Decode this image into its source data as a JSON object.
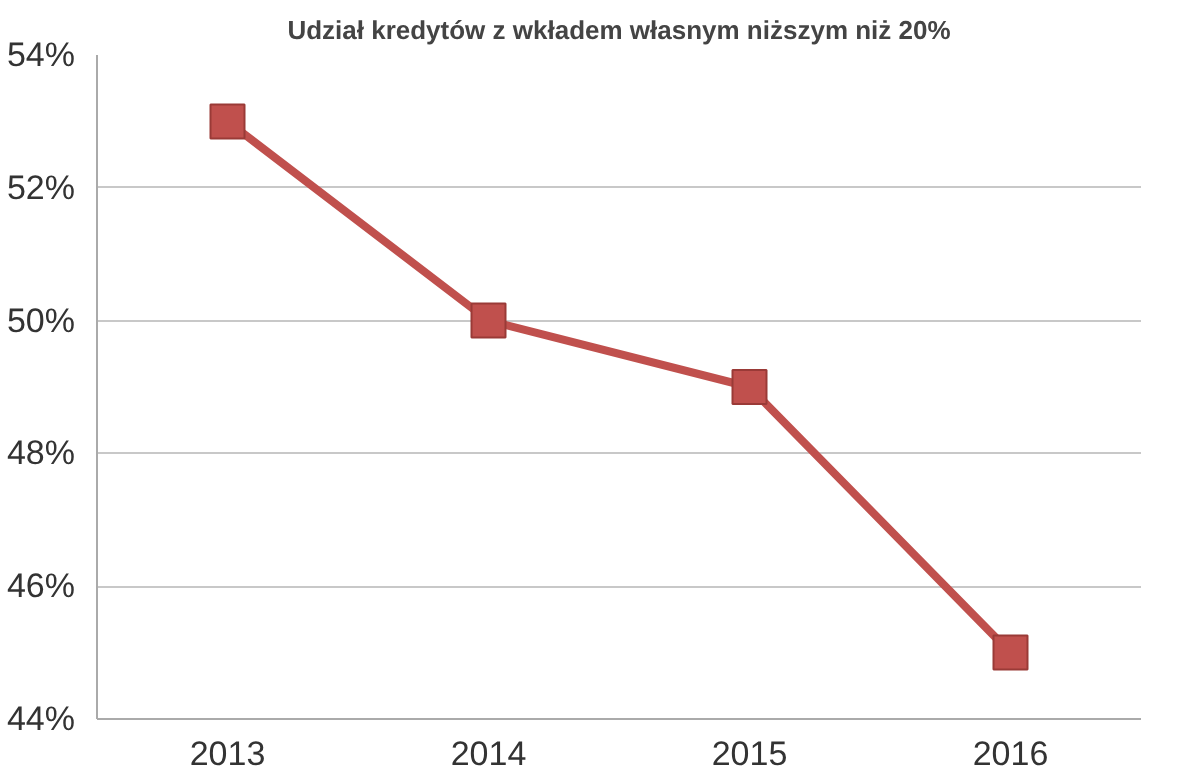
{
  "chart_data": {
    "type": "line",
    "title": "Udział kredytów z wkładem własnym niższym niż 20%",
    "categories": [
      "2013",
      "2014",
      "2015",
      "2016"
    ],
    "series": [
      {
        "color": "#c0504d",
        "values": [
          53,
          50,
          49,
          45
        ]
      }
    ],
    "ylim": [
      44,
      54
    ],
    "yticks": [
      {
        "value": 44,
        "label": "44%"
      },
      {
        "value": 46,
        "label": "46%"
      },
      {
        "value": 48,
        "label": "48%"
      },
      {
        "value": 50,
        "label": "50%"
      },
      {
        "value": 52,
        "label": "52%"
      },
      {
        "value": 54,
        "label": "54%"
      }
    ],
    "grid": "y",
    "marker": "square",
    "line_style": "solid"
  }
}
